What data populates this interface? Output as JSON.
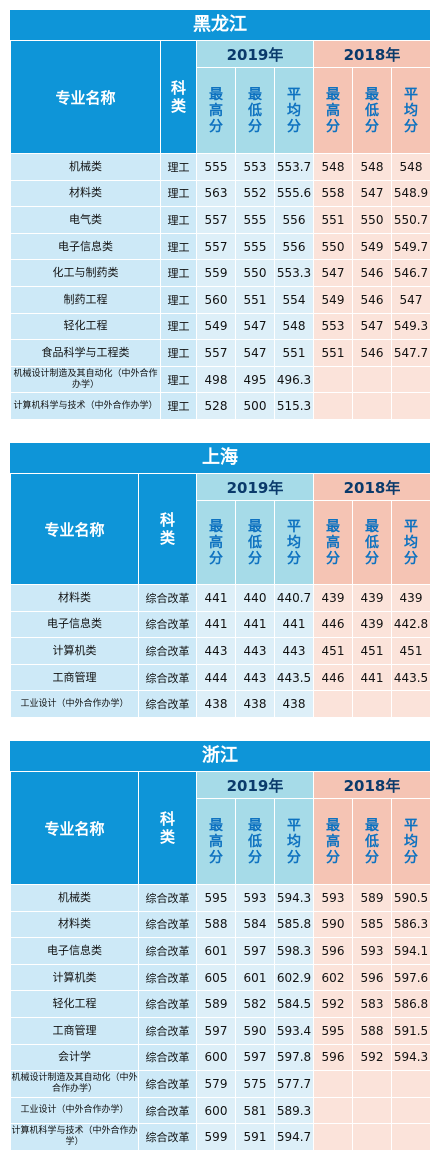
{
  "headers": {
    "major": "专业名称",
    "ke": "科类",
    "year_a": "2019年",
    "year_b": "2018年",
    "max": "最高分",
    "min": "最低分",
    "avg": "平均分"
  },
  "sections": [
    {
      "province": "黑龙江",
      "rows": [
        {
          "major": "机械类",
          "ke": "理工",
          "a": [
            "555",
            "553",
            "553.7"
          ],
          "b": [
            "548",
            "548",
            "548"
          ]
        },
        {
          "major": "材料类",
          "ke": "理工",
          "a": [
            "563",
            "552",
            "555.6"
          ],
          "b": [
            "558",
            "547",
            "548.9"
          ]
        },
        {
          "major": "电气类",
          "ke": "理工",
          "a": [
            "557",
            "555",
            "556"
          ],
          "b": [
            "551",
            "550",
            "550.7"
          ]
        },
        {
          "major": "电子信息类",
          "ke": "理工",
          "a": [
            "557",
            "555",
            "556"
          ],
          "b": [
            "550",
            "549",
            "549.7"
          ]
        },
        {
          "major": "化工与制药类",
          "ke": "理工",
          "a": [
            "559",
            "550",
            "553.3"
          ],
          "b": [
            "547",
            "546",
            "546.7"
          ]
        },
        {
          "major": "制药工程",
          "ke": "理工",
          "a": [
            "560",
            "551",
            "554"
          ],
          "b": [
            "549",
            "546",
            "547"
          ]
        },
        {
          "major": "轻化工程",
          "ke": "理工",
          "a": [
            "549",
            "547",
            "548"
          ],
          "b": [
            "553",
            "547",
            "549.3"
          ]
        },
        {
          "major": "食品科学与工程类",
          "ke": "理工",
          "a": [
            "557",
            "547",
            "551"
          ],
          "b": [
            "551",
            "546",
            "547.7"
          ]
        },
        {
          "major": "机械设计制造及其自动化（中外合作办学）",
          "ke": "理工",
          "a": [
            "498",
            "495",
            "496.3"
          ],
          "b": [
            "",
            "",
            ""
          ]
        },
        {
          "major": "计算机科学与技术（中外合作办学）",
          "ke": "理工",
          "a": [
            "528",
            "500",
            "515.3"
          ],
          "b": [
            "",
            "",
            ""
          ]
        }
      ]
    },
    {
      "province": "上海",
      "rows": [
        {
          "major": "材料类",
          "ke": "综合改革",
          "a": [
            "441",
            "440",
            "440.7"
          ],
          "b": [
            "439",
            "439",
            "439"
          ]
        },
        {
          "major": "电子信息类",
          "ke": "综合改革",
          "a": [
            "441",
            "441",
            "441"
          ],
          "b": [
            "446",
            "439",
            "442.8"
          ]
        },
        {
          "major": "计算机类",
          "ke": "综合改革",
          "a": [
            "443",
            "443",
            "443"
          ],
          "b": [
            "451",
            "451",
            "451"
          ]
        },
        {
          "major": "工商管理",
          "ke": "综合改革",
          "a": [
            "444",
            "443",
            "443.5"
          ],
          "b": [
            "446",
            "441",
            "443.5"
          ]
        },
        {
          "major": "工业设计（中外合作办学）",
          "ke": "综合改革",
          "a": [
            "438",
            "438",
            "438"
          ],
          "b": [
            "",
            "",
            ""
          ]
        }
      ]
    },
    {
      "province": "浙江",
      "rows": [
        {
          "major": "机械类",
          "ke": "综合改革",
          "a": [
            "595",
            "593",
            "594.3"
          ],
          "b": [
            "593",
            "589",
            "590.5"
          ]
        },
        {
          "major": "材料类",
          "ke": "综合改革",
          "a": [
            "588",
            "584",
            "585.8"
          ],
          "b": [
            "590",
            "585",
            "586.3"
          ]
        },
        {
          "major": "电子信息类",
          "ke": "综合改革",
          "a": [
            "601",
            "597",
            "598.3"
          ],
          "b": [
            "596",
            "593",
            "594.1"
          ]
        },
        {
          "major": "计算机类",
          "ke": "综合改革",
          "a": [
            "605",
            "601",
            "602.9"
          ],
          "b": [
            "602",
            "596",
            "597.6"
          ]
        },
        {
          "major": "轻化工程",
          "ke": "综合改革",
          "a": [
            "589",
            "582",
            "584.5"
          ],
          "b": [
            "592",
            "583",
            "586.8"
          ]
        },
        {
          "major": "工商管理",
          "ke": "综合改革",
          "a": [
            "597",
            "590",
            "593.4"
          ],
          "b": [
            "595",
            "588",
            "591.5"
          ]
        },
        {
          "major": "会计学",
          "ke": "综合改革",
          "a": [
            "600",
            "597",
            "597.8"
          ],
          "b": [
            "596",
            "592",
            "594.3"
          ]
        },
        {
          "major": "机械设计制造及其自动化（中外合作办学）",
          "ke": "综合改革",
          "a": [
            "579",
            "575",
            "577.7"
          ],
          "b": [
            "",
            "",
            ""
          ]
        },
        {
          "major": "工业设计（中外合作办学）",
          "ke": "综合改革",
          "a": [
            "600",
            "581",
            "589.3"
          ],
          "b": [
            "",
            "",
            ""
          ]
        },
        {
          "major": "计算机科学与技术（中外合作办学）",
          "ke": "综合改革",
          "a": [
            "599",
            "591",
            "594.7"
          ],
          "b": [
            "",
            "",
            ""
          ]
        }
      ]
    }
  ]
}
